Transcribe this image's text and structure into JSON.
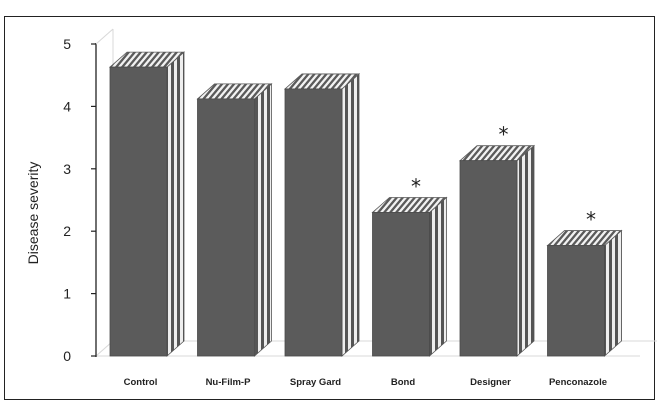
{
  "chart_data": {
    "type": "bar",
    "title": "",
    "xlabel": "",
    "ylabel": "Disease severity",
    "ylim": [
      0,
      5
    ],
    "yticks": [
      "0",
      "1",
      "2",
      "3",
      "4",
      "5"
    ],
    "categories": [
      "Control",
      "Nu-Film-P",
      "Spray Gard",
      "Bond",
      "Designer",
      "Penconazole"
    ],
    "values": [
      4.63,
      4.12,
      4.28,
      2.3,
      3.13,
      1.77
    ],
    "significance": [
      "",
      "",
      "",
      "*",
      "*",
      "*"
    ],
    "grid": false,
    "style": "3d",
    "colors": {
      "bar_front": "#5b5b5b",
      "bar_top_light": "#f2f2f2",
      "bar_top_dark": "#5b5b5b",
      "bar_side_light": "#eeeeee",
      "bar_side_dark": "#555555",
      "axis": "#222222",
      "floor": "#d8d8d8"
    }
  }
}
